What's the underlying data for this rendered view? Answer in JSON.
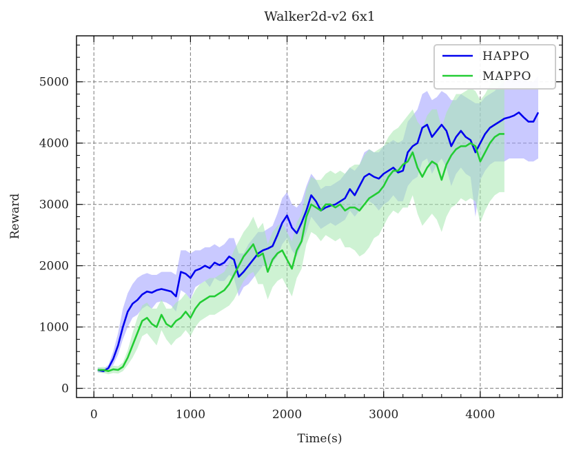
{
  "chart_data": {
    "type": "line",
    "title": "Walker2d-v2 6x1",
    "xlabel": "Time(s)",
    "ylabel": "Reward",
    "xlim": [
      -180,
      4850
    ],
    "ylim": [
      -150,
      5750
    ],
    "xticks": [
      0,
      1000,
      2000,
      3000,
      4000
    ],
    "yticks": [
      0,
      1000,
      2000,
      3000,
      4000,
      5000
    ],
    "grid": true,
    "legend": "top-right",
    "series": [
      {
        "name": "HAPPO",
        "color": "#0000ee",
        "band_color": "#9c9cff",
        "x": [
          40,
          100,
          150,
          200,
          250,
          300,
          350,
          400,
          450,
          500,
          550,
          600,
          650,
          700,
          750,
          800,
          850,
          900,
          950,
          1000,
          1050,
          1100,
          1150,
          1200,
          1250,
          1300,
          1350,
          1400,
          1450,
          1500,
          1550,
          1600,
          1650,
          1700,
          1750,
          1800,
          1850,
          1900,
          1950,
          2000,
          2050,
          2100,
          2150,
          2200,
          2250,
          2300,
          2350,
          2400,
          2450,
          2500,
          2550,
          2600,
          2650,
          2700,
          2750,
          2800,
          2850,
          2900,
          2950,
          3000,
          3050,
          3100,
          3150,
          3200,
          3250,
          3300,
          3350,
          3400,
          3450,
          3500,
          3550,
          3600,
          3650,
          3700,
          3750,
          3800,
          3850,
          3900,
          3950,
          4000,
          4050,
          4100,
          4150,
          4200,
          4250,
          4300,
          4350,
          4400,
          4450,
          4500,
          4550,
          4600
        ],
        "y": [
          300,
          280,
          330,
          480,
          700,
          1000,
          1250,
          1380,
          1440,
          1530,
          1580,
          1560,
          1600,
          1620,
          1600,
          1580,
          1500,
          1900,
          1870,
          1800,
          1920,
          1950,
          2000,
          1960,
          2050,
          2010,
          2050,
          2150,
          2100,
          1820,
          1900,
          2000,
          2100,
          2200,
          2250,
          2280,
          2320,
          2500,
          2700,
          2820,
          2620,
          2530,
          2700,
          2900,
          3150,
          3050,
          2900,
          2950,
          2980,
          3000,
          3050,
          3100,
          3250,
          3150,
          3300,
          3450,
          3500,
          3450,
          3420,
          3500,
          3550,
          3600,
          3520,
          3550,
          3850,
          3950,
          4000,
          4250,
          4300,
          4100,
          4200,
          4300,
          4200,
          3950,
          4100,
          4200,
          4100,
          4050,
          3850,
          4000,
          4150,
          4250,
          4300,
          4350,
          4400,
          4420,
          4450,
          4500,
          4420,
          4350,
          4350,
          4500
        ],
        "lower": [
          260,
          250,
          290,
          380,
          550,
          800,
          1000,
          1150,
          1200,
          1300,
          1350,
          1300,
          1400,
          1420,
          1400,
          1350,
          1250,
          1600,
          1550,
          1450,
          1650,
          1700,
          1750,
          1650,
          1800,
          1750,
          1750,
          1850,
          1800,
          1500,
          1650,
          1700,
          1800,
          1900,
          2000,
          2000,
          2050,
          2150,
          2350,
          2450,
          2250,
          2150,
          2350,
          2550,
          2800,
          2700,
          2600,
          2650,
          2700,
          2650,
          2700,
          2750,
          2900,
          2800,
          2900,
          3050,
          3050,
          3000,
          2900,
          3000,
          3050,
          3150,
          3050,
          3050,
          3300,
          3400,
          3450,
          3700,
          3750,
          3500,
          3650,
          3750,
          3600,
          3300,
          3500,
          3600,
          3500,
          3450,
          2800,
          3400,
          3550,
          3650,
          3700,
          3700,
          3700,
          3750,
          3750,
          3750,
          3750,
          3700,
          3700,
          3750
        ],
        "upper": [
          340,
          320,
          380,
          600,
          900,
          1300,
          1550,
          1700,
          1800,
          1850,
          1880,
          1850,
          1850,
          1900,
          1900,
          1900,
          1850,
          2250,
          2250,
          2200,
          2250,
          2250,
          2300,
          2300,
          2350,
          2300,
          2350,
          2450,
          2450,
          2200,
          2200,
          2350,
          2450,
          2550,
          2550,
          2600,
          2650,
          2850,
          3100,
          3200,
          3000,
          2950,
          3050,
          3300,
          3500,
          3400,
          3250,
          3300,
          3300,
          3350,
          3400,
          3500,
          3600,
          3550,
          3650,
          3850,
          3900,
          3850,
          3850,
          3950,
          4000,
          4050,
          4000,
          4050,
          4350,
          4450,
          4550,
          4800,
          4850,
          4700,
          4750,
          4850,
          4800,
          4700,
          4700,
          4800,
          4750,
          4700,
          4650,
          4650,
          4750,
          4800,
          4850,
          4950,
          5000,
          5050,
          5100,
          5200,
          5100,
          5000,
          5000,
          5100
        ]
      },
      {
        "name": "MAPPO",
        "color": "#22cc33",
        "band_color": "#a6e8ae",
        "x": [
          40,
          100,
          150,
          200,
          250,
          300,
          350,
          400,
          450,
          500,
          550,
          600,
          650,
          700,
          750,
          800,
          850,
          900,
          950,
          1000,
          1050,
          1100,
          1150,
          1200,
          1250,
          1300,
          1350,
          1400,
          1450,
          1500,
          1550,
          1600,
          1650,
          1700,
          1750,
          1800,
          1850,
          1900,
          1950,
          2000,
          2050,
          2100,
          2150,
          2200,
          2250,
          2300,
          2350,
          2400,
          2450,
          2500,
          2550,
          2600,
          2650,
          2700,
          2750,
          2800,
          2850,
          2900,
          2950,
          3000,
          3050,
          3100,
          3150,
          3200,
          3250,
          3300,
          3350,
          3400,
          3450,
          3500,
          3550,
          3600,
          3650,
          3700,
          3750,
          3800,
          3850,
          3900,
          3950,
          4000,
          4050,
          4100,
          4150,
          4200,
          4250
        ],
        "y": [
          300,
          300,
          280,
          310,
          300,
          350,
          500,
          700,
          900,
          1100,
          1150,
          1050,
          1000,
          1200,
          1050,
          1000,
          1100,
          1150,
          1250,
          1150,
          1300,
          1400,
          1450,
          1500,
          1500,
          1550,
          1600,
          1700,
          1850,
          2000,
          2150,
          2250,
          2350,
          2150,
          2200,
          1900,
          2100,
          2200,
          2250,
          2100,
          1950,
          2250,
          2400,
          2800,
          3000,
          2950,
          2900,
          3000,
          3000,
          2950,
          3000,
          2900,
          2950,
          2950,
          2900,
          3000,
          3100,
          3150,
          3200,
          3300,
          3450,
          3550,
          3550,
          3650,
          3700,
          3850,
          3600,
          3450,
          3600,
          3700,
          3650,
          3400,
          3650,
          3800,
          3900,
          3950,
          3950,
          4000,
          3950,
          3700,
          3850,
          4000,
          4100,
          4150,
          4150
        ],
        "lower": [
          260,
          250,
          230,
          250,
          240,
          280,
          380,
          500,
          650,
          850,
          900,
          800,
          700,
          950,
          800,
          700,
          800,
          850,
          950,
          850,
          1000,
          1100,
          1150,
          1200,
          1200,
          1250,
          1300,
          1350,
          1450,
          1600,
          1750,
          1850,
          1900,
          1700,
          1700,
          1450,
          1650,
          1750,
          1800,
          1650,
          1500,
          1800,
          1950,
          2350,
          2550,
          2500,
          2400,
          2500,
          2450,
          2400,
          2450,
          2300,
          2300,
          2250,
          2150,
          2200,
          2300,
          2450,
          2500,
          2650,
          2800,
          2900,
          2850,
          2950,
          2950,
          3150,
          2850,
          2650,
          2750,
          2850,
          2750,
          2550,
          2800,
          2950,
          3000,
          3100,
          3050,
          3100,
          3050,
          2700,
          2900,
          3050,
          3150,
          3200,
          3200
        ],
        "upper": [
          340,
          350,
          330,
          370,
          360,
          420,
          620,
          900,
          1150,
          1350,
          1400,
          1300,
          1300,
          1450,
          1300,
          1300,
          1400,
          1450,
          1550,
          1450,
          1600,
          1700,
          1750,
          1800,
          1800,
          1850,
          1900,
          2050,
          2250,
          2400,
          2550,
          2650,
          2800,
          2600,
          2700,
          2350,
          2550,
          2650,
          2700,
          2550,
          2400,
          2700,
          2850,
          3250,
          3450,
          3400,
          3400,
          3500,
          3550,
          3500,
          3550,
          3500,
          3600,
          3650,
          3650,
          3800,
          3900,
          3850,
          3900,
          3950,
          4100,
          4200,
          4250,
          4350,
          4450,
          4550,
          4350,
          4250,
          4450,
          4550,
          4550,
          4250,
          4500,
          4650,
          4800,
          4800,
          4850,
          4900,
          4850,
          4700,
          4800,
          4950,
          5050,
          5100,
          5100
        ]
      }
    ]
  }
}
